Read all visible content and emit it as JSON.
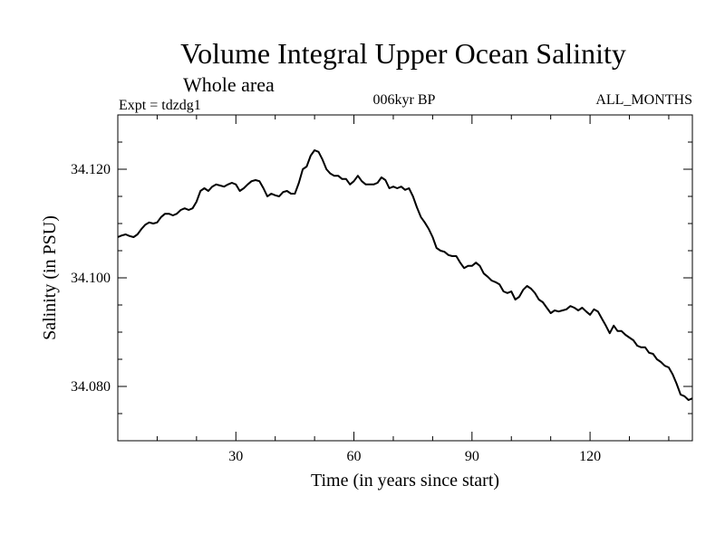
{
  "chart_data": {
    "type": "line",
    "title": "Volume Integral Upper Ocean Salinity",
    "subtitle": "Whole area",
    "expt_label": "Expt = tdzdg1",
    "period_label": "006kyr BP",
    "months_label": "ALL_MONTHS",
    "xlabel": "Time (in years since start)",
    "ylabel": "Salinity (in PSU)",
    "xlim": [
      0,
      146
    ],
    "ylim": [
      34.07,
      34.13
    ],
    "x_ticks": [
      30,
      60,
      90,
      120
    ],
    "x_tick_labels": [
      "30",
      "60",
      "90",
      "120"
    ],
    "y_ticks": [
      34.08,
      34.1,
      34.12
    ],
    "y_tick_labels": [
      "34.080",
      "34.100",
      "34.120"
    ],
    "grid": false,
    "series": [
      {
        "name": "salinity",
        "x": [
          0,
          1,
          2,
          3,
          4,
          5,
          6,
          7,
          8,
          9,
          10,
          11,
          12,
          13,
          14,
          15,
          16,
          17,
          18,
          19,
          20,
          21,
          22,
          23,
          24,
          25,
          26,
          27,
          28,
          29,
          30,
          31,
          32,
          33,
          34,
          35,
          36,
          37,
          38,
          39,
          40,
          41,
          42,
          43,
          44,
          45,
          46,
          47,
          48,
          49,
          50,
          51,
          52,
          53,
          54,
          55,
          56,
          57,
          58,
          59,
          60,
          61,
          62,
          63,
          64,
          65,
          66,
          67,
          68,
          69,
          70,
          71,
          72,
          73,
          74,
          75,
          76,
          77,
          78,
          79,
          80,
          81,
          82,
          83,
          84,
          85,
          86,
          87,
          88,
          89,
          90,
          91,
          92,
          93,
          94,
          95,
          96,
          97,
          98,
          99,
          100,
          101,
          102,
          103,
          104,
          105,
          106,
          107,
          108,
          109,
          110,
          111,
          112,
          113,
          114,
          115,
          116,
          117,
          118,
          119,
          120,
          121,
          122,
          123,
          124,
          125,
          126,
          127,
          128,
          129,
          130,
          131,
          132,
          133,
          134,
          135,
          136,
          137,
          138,
          139,
          140,
          141,
          142,
          143,
          144,
          145,
          146
        ],
        "values": [
          34.1075,
          34.1078,
          34.108,
          34.1077,
          34.1075,
          34.108,
          34.109,
          34.1098,
          34.1102,
          34.11,
          34.1102,
          34.1112,
          34.1118,
          34.1118,
          34.1115,
          34.1118,
          34.1125,
          34.1128,
          34.1125,
          34.1128,
          34.114,
          34.116,
          34.1165,
          34.116,
          34.1168,
          34.1172,
          34.117,
          34.1168,
          34.1172,
          34.1175,
          34.1172,
          34.116,
          34.1165,
          34.1172,
          34.1178,
          34.118,
          34.1178,
          34.1165,
          34.115,
          34.1155,
          34.1152,
          34.115,
          34.1158,
          34.116,
          34.1155,
          34.1155,
          34.1175,
          34.12,
          34.1205,
          34.1225,
          34.1235,
          34.1232,
          34.1218,
          34.12,
          34.1192,
          34.1188,
          34.1188,
          34.1182,
          34.1182,
          34.1172,
          34.1178,
          34.1188,
          34.1178,
          34.1172,
          34.1172,
          34.1172,
          34.1175,
          34.1185,
          34.118,
          34.1165,
          34.1168,
          34.1165,
          34.1168,
          34.1162,
          34.1165,
          34.115,
          34.113,
          34.1112,
          34.1102,
          34.109,
          34.1075,
          34.1055,
          34.105,
          34.1048,
          34.1042,
          34.104,
          34.104,
          34.1028,
          34.1018,
          34.1022,
          34.1022,
          34.1028,
          34.1022,
          34.1008,
          34.1002,
          34.0995,
          34.0992,
          34.0988,
          34.0975,
          34.0972,
          34.0975,
          34.096,
          34.0965,
          34.0978,
          34.0985,
          34.098,
          34.0972,
          34.096,
          34.0955,
          34.0945,
          34.0935,
          34.094,
          34.0938,
          34.094,
          34.0942,
          34.0948,
          34.0945,
          34.094,
          34.0945,
          34.0938,
          34.0932,
          34.0942,
          34.0938,
          34.0925,
          34.0912,
          34.0898,
          34.0912,
          34.0902,
          34.0902,
          34.0895,
          34.089,
          34.0885,
          34.0875,
          34.0872,
          34.0872,
          34.0862,
          34.086,
          34.085,
          34.0845,
          34.0838,
          34.0835,
          34.0822,
          34.0805,
          34.0785,
          34.0782,
          34.0775,
          34.0778
        ]
      }
    ]
  }
}
